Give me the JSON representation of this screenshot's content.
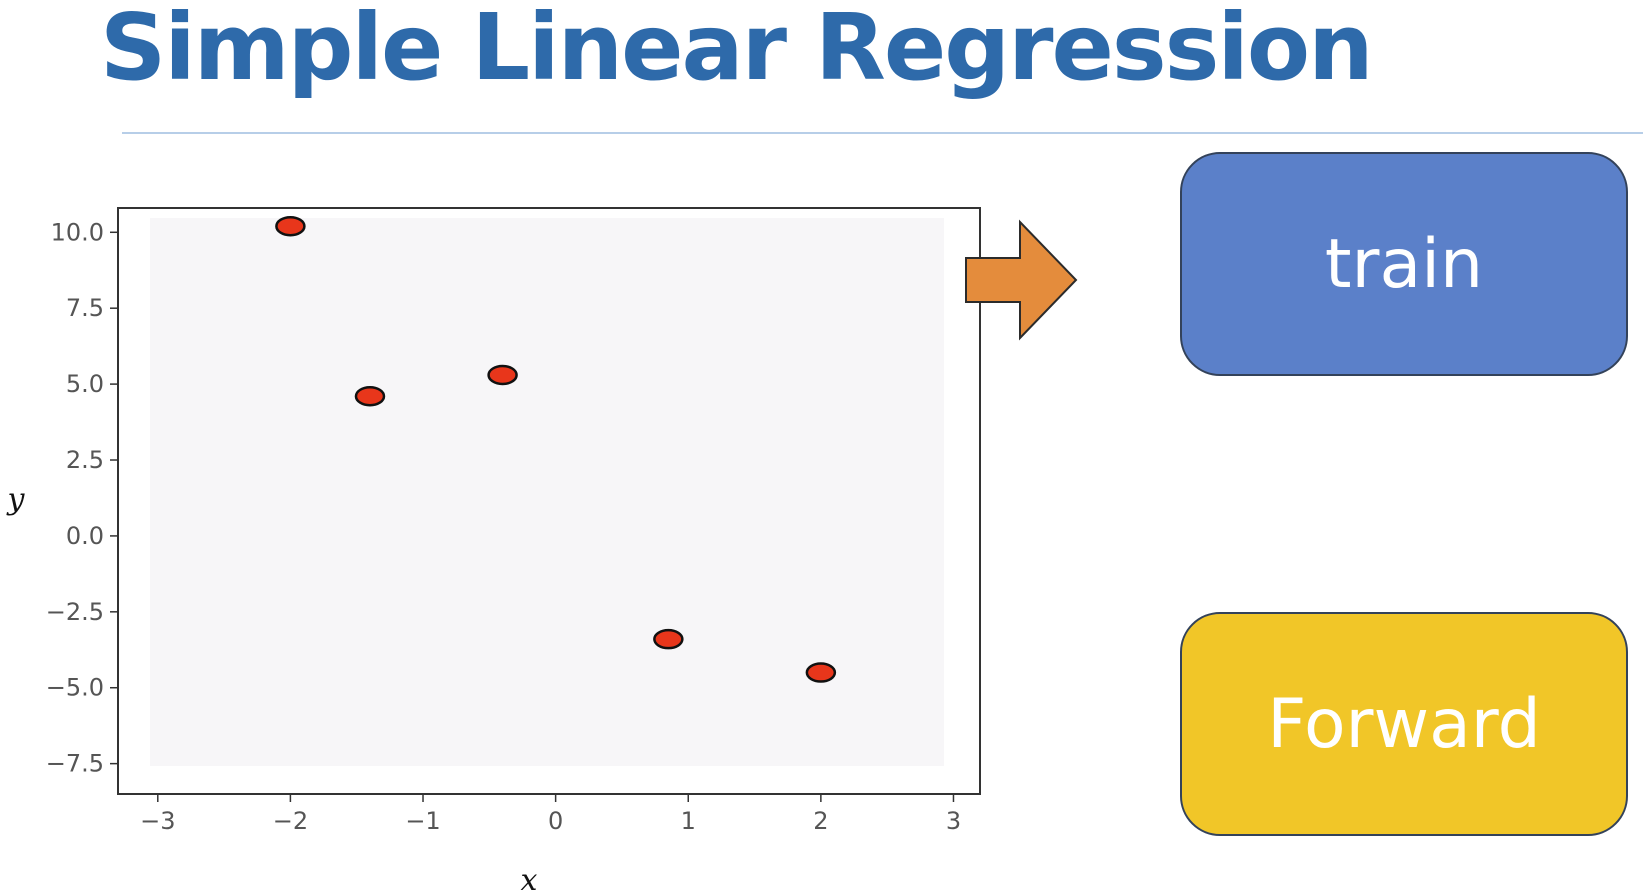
{
  "slide": {
    "title": "Simple Linear Regression"
  },
  "boxes": {
    "train": "train",
    "forward": "Forward"
  },
  "colors": {
    "title": "#2e6aaa",
    "rule": "#b7cee8",
    "arrow": "#e48c3c",
    "train_box": "#5b80c9",
    "forward_box": "#f1c628",
    "point_fill": "#e8361b",
    "plot_bg": "#f7f6f8"
  },
  "icons": {
    "arrow": "right-arrow-icon"
  },
  "chart_data": {
    "type": "scatter",
    "title": "",
    "xlabel": "x",
    "ylabel": "y",
    "xlim": [
      -3.3,
      3.2
    ],
    "ylim": [
      -8.5,
      10.8
    ],
    "xticks": [
      -3,
      -2,
      -1,
      0,
      1,
      2,
      3
    ],
    "xtick_labels": [
      "−3",
      "−2",
      "−1",
      "0",
      "1",
      "2",
      "3"
    ],
    "yticks": [
      10.0,
      7.5,
      5.0,
      2.5,
      0.0,
      -2.5,
      -5.0,
      -7.5
    ],
    "ytick_labels": [
      "10.0",
      "7.5",
      "5.0",
      "2.5",
      "0.0",
      "−2.5",
      "−5.0",
      "−7.5"
    ],
    "grid": false,
    "series": [
      {
        "x": [
          -2.0,
          -1.4,
          -0.4,
          0.85,
          2.0
        ],
        "y": [
          10.2,
          4.6,
          5.3,
          -3.4,
          -4.5
        ]
      }
    ]
  }
}
